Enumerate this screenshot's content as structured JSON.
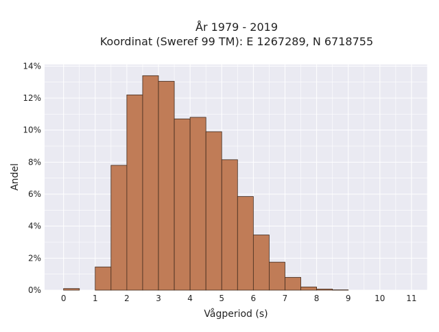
{
  "chart_data": {
    "type": "bar",
    "title": "År 1979 - 2019",
    "subtitle": "Koordinat (Sweref 99 TM): E 1267289, N 6718755",
    "xlabel": "Vågperiod (s)",
    "ylabel": "Andel",
    "x_ticks": [
      "0",
      "1",
      "2",
      "3",
      "4",
      "5",
      "6",
      "7",
      "8",
      "9",
      "10",
      "11"
    ],
    "y_ticks": [
      "0%",
      "2%",
      "4%",
      "6%",
      "8%",
      "10%",
      "12%",
      "14%"
    ],
    "xlim": [
      -0.6,
      11.5
    ],
    "ylim": [
      0,
      14.1
    ],
    "bin_width": 0.5,
    "bins": [
      {
        "x_start": 0.0,
        "value": 0.1
      },
      {
        "x_start": 1.0,
        "value": 1.45
      },
      {
        "x_start": 1.5,
        "value": 7.8
      },
      {
        "x_start": 2.0,
        "value": 12.2
      },
      {
        "x_start": 2.5,
        "value": 13.4
      },
      {
        "x_start": 3.0,
        "value": 13.05
      },
      {
        "x_start": 3.5,
        "value": 10.7
      },
      {
        "x_start": 4.0,
        "value": 10.8
      },
      {
        "x_start": 4.5,
        "value": 9.9
      },
      {
        "x_start": 5.0,
        "value": 8.15
      },
      {
        "x_start": 5.5,
        "value": 5.85
      },
      {
        "x_start": 6.0,
        "value": 3.45
      },
      {
        "x_start": 6.5,
        "value": 1.75
      },
      {
        "x_start": 7.0,
        "value": 0.8
      },
      {
        "x_start": 7.5,
        "value": 0.2
      },
      {
        "x_start": 8.0,
        "value": 0.07
      },
      {
        "x_start": 8.5,
        "value": 0.02
      }
    ],
    "grid": true,
    "colors": {
      "bar_fill": "#c07c57",
      "bar_stroke": "#3f2a1d",
      "plot_background": "#eaeaf2",
      "grid": "#ffffff"
    }
  }
}
